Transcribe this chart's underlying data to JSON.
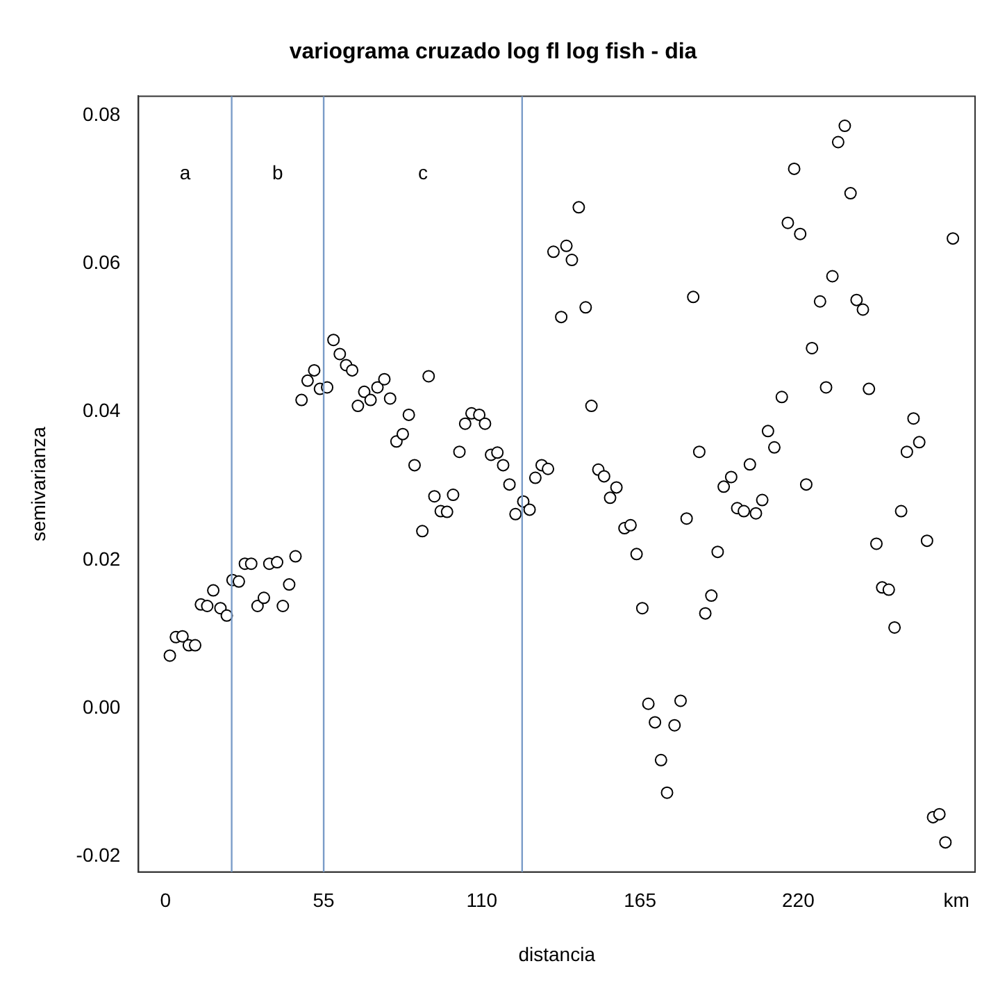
{
  "chart_data": {
    "type": "scatter",
    "title": "variograma cruzado log fl log fish - dia",
    "xlabel": "distancia",
    "ylabel": "semivarianza",
    "xlim": [
      -9.4,
      281.5
    ],
    "ylim": [
      -0.0221,
      0.0826
    ],
    "xticks": [
      0,
      55,
      110,
      165,
      220,
      {
        "value": 275,
        "label": "km"
      }
    ],
    "yticks": [
      -0.02,
      {
        "value": 0,
        "label": "0.00"
      },
      0.02,
      0.04,
      0.06,
      0.08
    ],
    "grid": false,
    "legend": false,
    "marker": "circle",
    "ref_lines": [
      {
        "axis": "x",
        "value": 23,
        "color": "#7a9cc8"
      },
      {
        "axis": "x",
        "value": 55,
        "color": "#7a9cc8"
      },
      {
        "axis": "x",
        "value": 124,
        "color": "#7a9cc8"
      }
    ],
    "annotations": [
      "a",
      "b",
      "c"
    ],
    "series": [
      {
        "color": "#000000",
        "x": [
          1.5,
          3.6,
          5.9,
          8.1,
          10.3,
          12.3,
          14.5,
          16.6,
          19.1,
          21.3,
          23.3,
          25.5,
          27.6,
          29.8,
          32.0,
          34.2,
          36.1,
          38.8,
          40.8,
          43.0,
          45.2,
          47.3,
          49.4,
          51.7,
          53.7,
          56.2,
          58.4,
          60.6,
          62.8,
          64.9,
          66.9,
          69.1,
          71.3,
          73.7,
          76.1,
          78.1,
          80.3,
          82.5,
          84.6,
          86.6,
          89.3,
          91.5,
          93.5,
          95.7,
          97.9,
          100.0,
          102.2,
          104.2,
          106.4,
          109.1,
          111.1,
          113.2,
          115.4,
          117.4,
          119.6,
          121.7,
          124.4,
          126.6,
          128.6,
          130.8,
          133.0,
          134.9,
          137.6,
          139.4,
          141.3,
          143.7,
          146.1,
          148.1,
          150.5,
          152.5,
          154.6,
          156.8,
          159.6,
          161.7,
          163.8,
          165.8,
          167.9,
          170.2,
          172.3,
          174.4,
          177.0,
          179.1,
          181.2,
          183.5,
          185.6,
          187.7,
          189.8,
          192.0,
          194.1,
          196.7,
          198.8,
          201.1,
          203.2,
          205.3,
          207.5,
          209.5,
          211.7,
          214.3,
          216.4,
          218.6,
          220.7,
          222.8,
          224.8,
          227.6,
          229.7,
          231.9,
          233.9,
          236.2,
          238.2,
          240.3,
          242.5,
          244.6,
          247.2,
          249.2,
          251.5,
          253.5,
          255.8,
          257.8,
          260.1,
          262.1,
          264.8,
          266.9,
          269.1,
          271.2,
          273.8
        ],
        "values": [
          0.0071,
          0.0096,
          0.0097,
          0.0085,
          0.0085,
          0.014,
          0.0138,
          0.0159,
          0.0135,
          0.0125,
          0.0173,
          0.0171,
          0.0195,
          0.0195,
          0.0138,
          0.0149,
          0.0195,
          0.0197,
          0.0138,
          0.0167,
          0.0205,
          0.0416,
          0.0442,
          0.0456,
          0.0431,
          0.0433,
          0.0497,
          0.0478,
          0.0463,
          0.0456,
          0.0408,
          0.0427,
          0.0416,
          0.0433,
          0.0444,
          0.0418,
          0.036,
          0.037,
          0.0396,
          0.0328,
          0.0239,
          0.0448,
          0.0286,
          0.0266,
          0.0265,
          0.0288,
          0.0346,
          0.0384,
          0.0398,
          0.0396,
          0.0384,
          0.0342,
          0.0345,
          0.0328,
          0.0302,
          0.0262,
          0.0279,
          0.0268,
          0.0311,
          0.0328,
          0.0323,
          0.0616,
          0.0528,
          0.0624,
          0.0605,
          0.0676,
          0.0541,
          0.0408,
          0.0322,
          0.0313,
          0.0284,
          0.0298,
          0.0243,
          0.0247,
          0.0208,
          0.0135,
          0.0006,
          -0.0019,
          -0.007,
          -0.0114,
          -0.0023,
          0.001,
          0.0256,
          0.0555,
          0.0346,
          0.0128,
          0.0152,
          0.0211,
          0.0299,
          0.0312,
          0.027,
          0.0266,
          0.0329,
          0.0263,
          0.0281,
          0.0374,
          0.0352,
          0.042,
          0.0655,
          0.0728,
          0.064,
          0.0302,
          0.0486,
          0.0549,
          0.0433,
          0.0583,
          0.0764,
          0.0786,
          0.0695,
          0.0551,
          0.0538,
          0.0431,
          0.0222,
          0.0163,
          0.016,
          0.0109,
          0.0266,
          0.0346,
          0.0391,
          0.0359,
          0.0226,
          -0.0147,
          -0.0143,
          -0.0181,
          0.0634
        ]
      }
    ]
  }
}
